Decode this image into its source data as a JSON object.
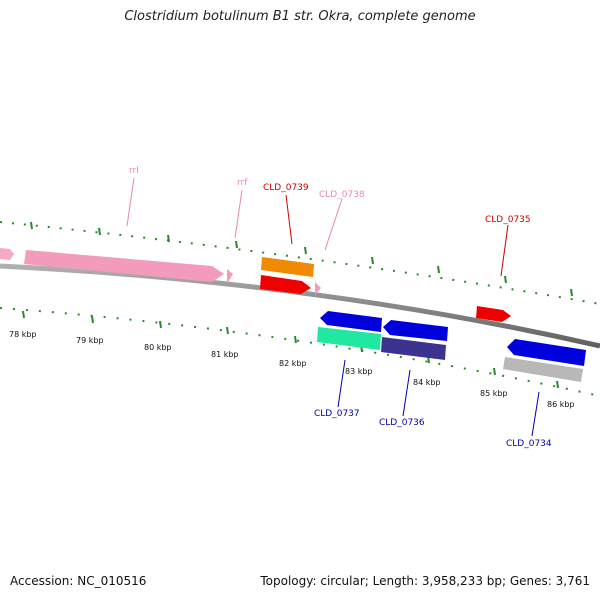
{
  "title": "Clostridium botulinum B1 str. Okra, complete genome",
  "footer": {
    "accession": "Accession: NC_010516",
    "info": "Topology: circular; Length: 3,958,233 bp; Genes: 3,761"
  },
  "colors": {
    "backbone": "#808080",
    "tick": "#2a8a2a",
    "forward_label": "#cc0000",
    "reverse_label": "#0000aa",
    "rna_label": "#e88aa8"
  },
  "kbp_labels": [
    "78 kbp",
    "79 kbp",
    "80 kbp",
    "81 kbp",
    "82 kbp",
    "83 kbp",
    "84 kbp",
    "85 kbp",
    "86 kbp"
  ],
  "gene_labels": {
    "rrl": "rrl",
    "rrf": "rrf",
    "CLD_0739": "CLD_0739",
    "CLD_0738": "CLD_0738",
    "CLD_0735": "CLD_0735",
    "CLD_0737": "CLD_0737",
    "CLD_0736": "CLD_0736",
    "CLD_0734": "CLD_0734"
  }
}
